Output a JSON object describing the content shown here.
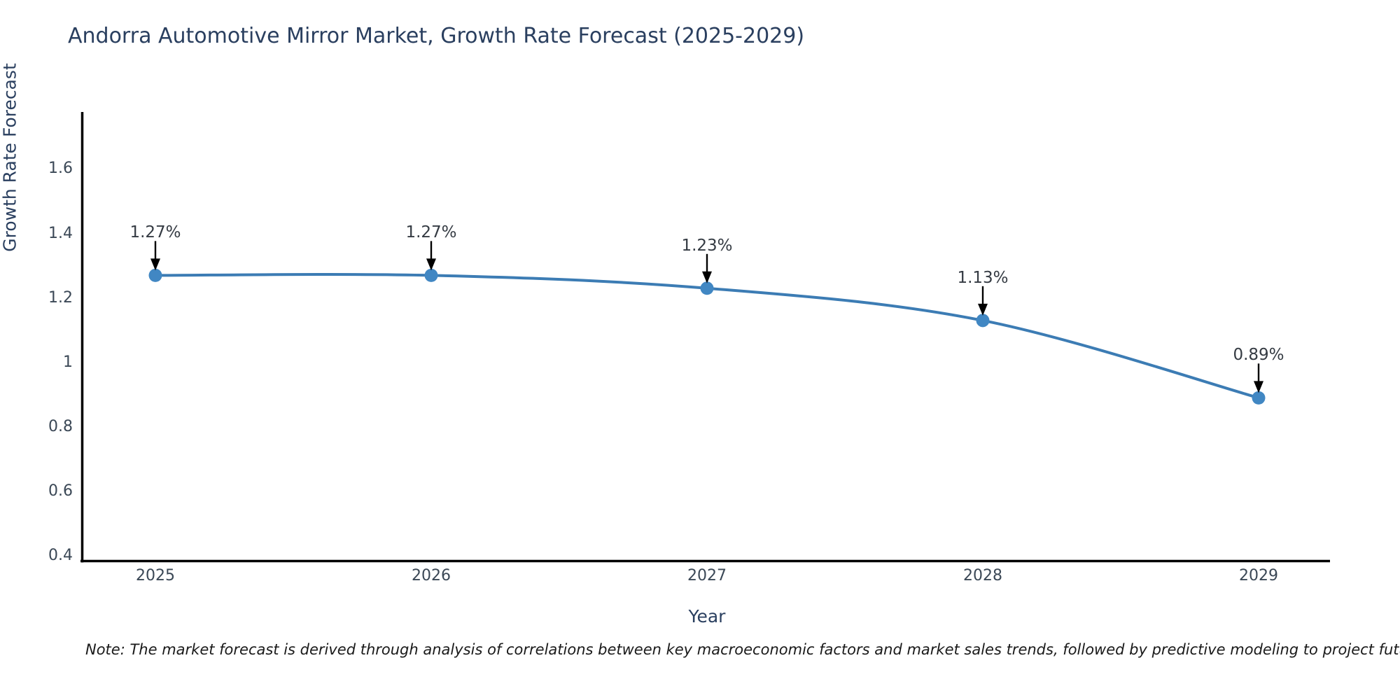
{
  "title": "Andorra Automotive Mirror Market, Growth Rate Forecast (2025-2029)",
  "note": "Note: The market forecast is derived through analysis of correlations between key macroeconomic factors and market sales trends, followed by predictive modeling to project future sales",
  "colors": {
    "line": "#3c7cb4",
    "marker": "#4187c3",
    "axis": "#000000",
    "title_text": "#2a3f5f",
    "tick_text": "#3b4856",
    "annotation_text": "#353b43"
  },
  "chart_data": {
    "type": "line",
    "title": "Andorra Automotive Mirror Market, Growth Rate Forecast (2025-2029)",
    "xlabel": "Year",
    "ylabel": "Growth Rate Forecast",
    "categories": [
      "2025",
      "2026",
      "2027",
      "2028",
      "2029"
    ],
    "series": [
      {
        "name": "Growth Rate Forecast",
        "values": [
          1.27,
          1.27,
          1.23,
          1.13,
          0.89
        ],
        "point_labels": [
          "1.27%",
          "1.27%",
          "1.23%",
          "1.13%",
          "0.89%"
        ]
      }
    ],
    "yticks": [
      "0.4",
      "0.6",
      "0.8",
      "1",
      "1.2",
      "1.4",
      "1.6"
    ],
    "ytick_values": [
      0.4,
      0.6,
      0.8,
      1.0,
      1.2,
      1.4,
      1.6
    ],
    "ylim": [
      0.38,
      1.78
    ],
    "grid": false,
    "legend": "none",
    "line_shape": "spline",
    "annotations_have_arrows": true
  }
}
